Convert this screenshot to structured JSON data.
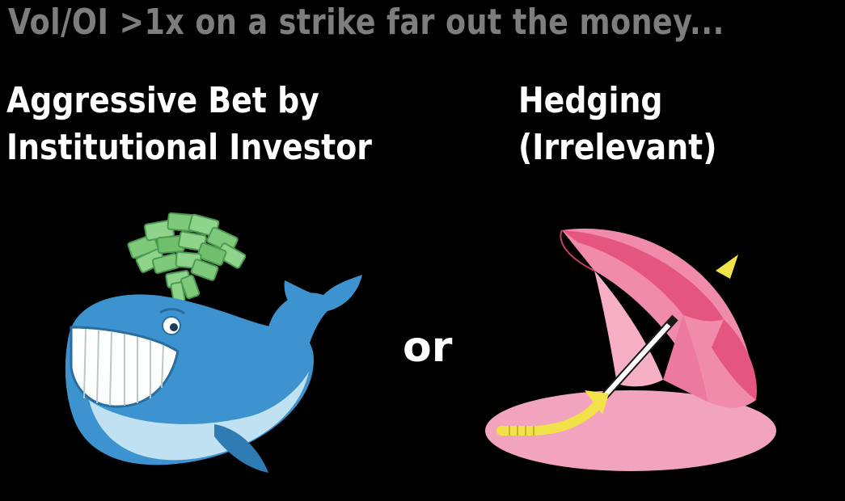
{
  "headline": "Vol/OI >1x on a strike far out the money...",
  "left_option": {
    "line1": "Aggressive Bet by",
    "line2": "Institutional Investor",
    "icon": "whale-spouting-money-icon"
  },
  "separator": "or",
  "right_option": {
    "line1": "Hedging",
    "line2": "(Irrelevant)",
    "icon": "umbrella-icon"
  },
  "colors": {
    "background": "#000000",
    "headline": "#7d7d7d",
    "label": "#ffffff",
    "whale_blue": "#3d93cf",
    "money_green": "#7fc97b",
    "umbrella_pink": "#e4557f",
    "handle_yellow": "#f2e24a"
  }
}
